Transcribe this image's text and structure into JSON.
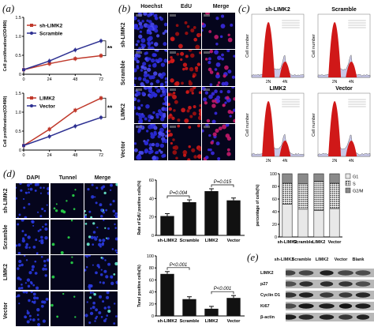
{
  "panels": {
    "a": "(a)",
    "b": "(b)",
    "c": "(c)",
    "d": "(d)",
    "e": "(e)"
  },
  "chart_data": [
    {
      "type": "line",
      "x": [
        0,
        24,
        48,
        72
      ],
      "series": [
        {
          "name": "sh-LIMK2",
          "values": [
            0.12,
            0.28,
            0.41,
            0.49
          ],
          "color": "#c0392b"
        },
        {
          "name": "Scramble",
          "values": [
            0.12,
            0.35,
            0.64,
            0.88
          ],
          "color": "#2e3192"
        }
      ],
      "ylabel": "Cell proliferation(OD490)",
      "ylim": [
        0,
        1.5
      ],
      "yticks": [
        "0",
        "0.5",
        "1.0",
        "1.5"
      ],
      "xticks": [
        "0",
        "24",
        "48",
        "72"
      ],
      "annotation": "**"
    },
    {
      "type": "line",
      "x": [
        0,
        24,
        48,
        72
      ],
      "series": [
        {
          "name": "LIMK2",
          "values": [
            0.12,
            0.55,
            1.05,
            1.37
          ],
          "color": "#c0392b"
        },
        {
          "name": "Vector",
          "values": [
            0.12,
            0.36,
            0.63,
            0.86
          ],
          "color": "#2e3192"
        }
      ],
      "ylabel": "Cell proliferation(OD490)",
      "ylim": [
        0,
        1.5
      ],
      "yticks": [
        "0",
        "0.5",
        "1.0",
        "1.5"
      ],
      "xticks": [
        "0",
        "24",
        "48",
        "72"
      ],
      "annotation": "**"
    },
    {
      "type": "bar",
      "categories": [
        "sh-LIMK2",
        "Scramble",
        "LIMK2",
        "Vector"
      ],
      "values": [
        21,
        36,
        48,
        38
      ],
      "ylabel": "Rate of EdU positive cells(%)",
      "ylim": [
        0,
        60
      ],
      "yticks": [
        "0",
        "20",
        "40",
        "60"
      ],
      "comparisons": [
        {
          "label": "P=0.004",
          "from": 0,
          "to": 1
        },
        {
          "label": "P=0.015",
          "from": 2,
          "to": 3
        }
      ]
    },
    {
      "type": "bar",
      "categories": [
        "sh-LIMK2",
        "Scramble",
        "LIMK2",
        "Vector"
      ],
      "series": [
        {
          "name": "G1",
          "values": [
            52,
            44,
            42,
            45
          ]
        },
        {
          "name": "S",
          "values": [
            33,
            40,
            46,
            40
          ]
        },
        {
          "name": "G2/M",
          "values": [
            15,
            16,
            12,
            15
          ]
        }
      ],
      "ylabel": "percentage of cells(%)",
      "ylim": [
        0,
        100
      ],
      "yticks": [
        "0",
        "20",
        "40",
        "60",
        "80",
        "100"
      ],
      "stacked": true
    },
    {
      "type": "bar",
      "categories": [
        "sh-LIMK2",
        "Scramble",
        "LIMK2",
        "Vector"
      ],
      "values": [
        70,
        28,
        12,
        30
      ],
      "ylabel": "Tunel positive cells(%)",
      "ylim": [
        0,
        100
      ],
      "yticks": [
        "0",
        "20",
        "40",
        "60",
        "80",
        "100"
      ],
      "comparisons": [
        {
          "label": "P<0.001",
          "from": 0,
          "to": 1
        },
        {
          "label": "P<0.001",
          "from": 2,
          "to": 3
        }
      ]
    }
  ],
  "panel_b": {
    "headers": [
      "Hoechst",
      "EdU",
      "Merge"
    ],
    "rows": [
      "sh-LIMK2",
      "Scramble",
      "LIMK2",
      "Vector"
    ]
  },
  "panel_c": {
    "titles": [
      "sh-LIMK2",
      "Scramble",
      "LIMK2",
      "Vector"
    ],
    "ylabel": "Cell number",
    "peaks": [
      "2N",
      "4N"
    ]
  },
  "panel_d": {
    "headers": [
      "DAPI",
      "Tunnel",
      "Merge"
    ],
    "rows": [
      "sh-LIMK2",
      "Scramble",
      "LIMK2",
      "Vector"
    ]
  },
  "panel_e": {
    "columns": [
      "sh-LIMK2",
      "Scramble",
      "LIMK2",
      "Vector",
      "Blank"
    ],
    "rows": [
      "LIMK2",
      "p27",
      "Cyclin D1",
      "Ki67",
      "β-actin"
    ]
  }
}
